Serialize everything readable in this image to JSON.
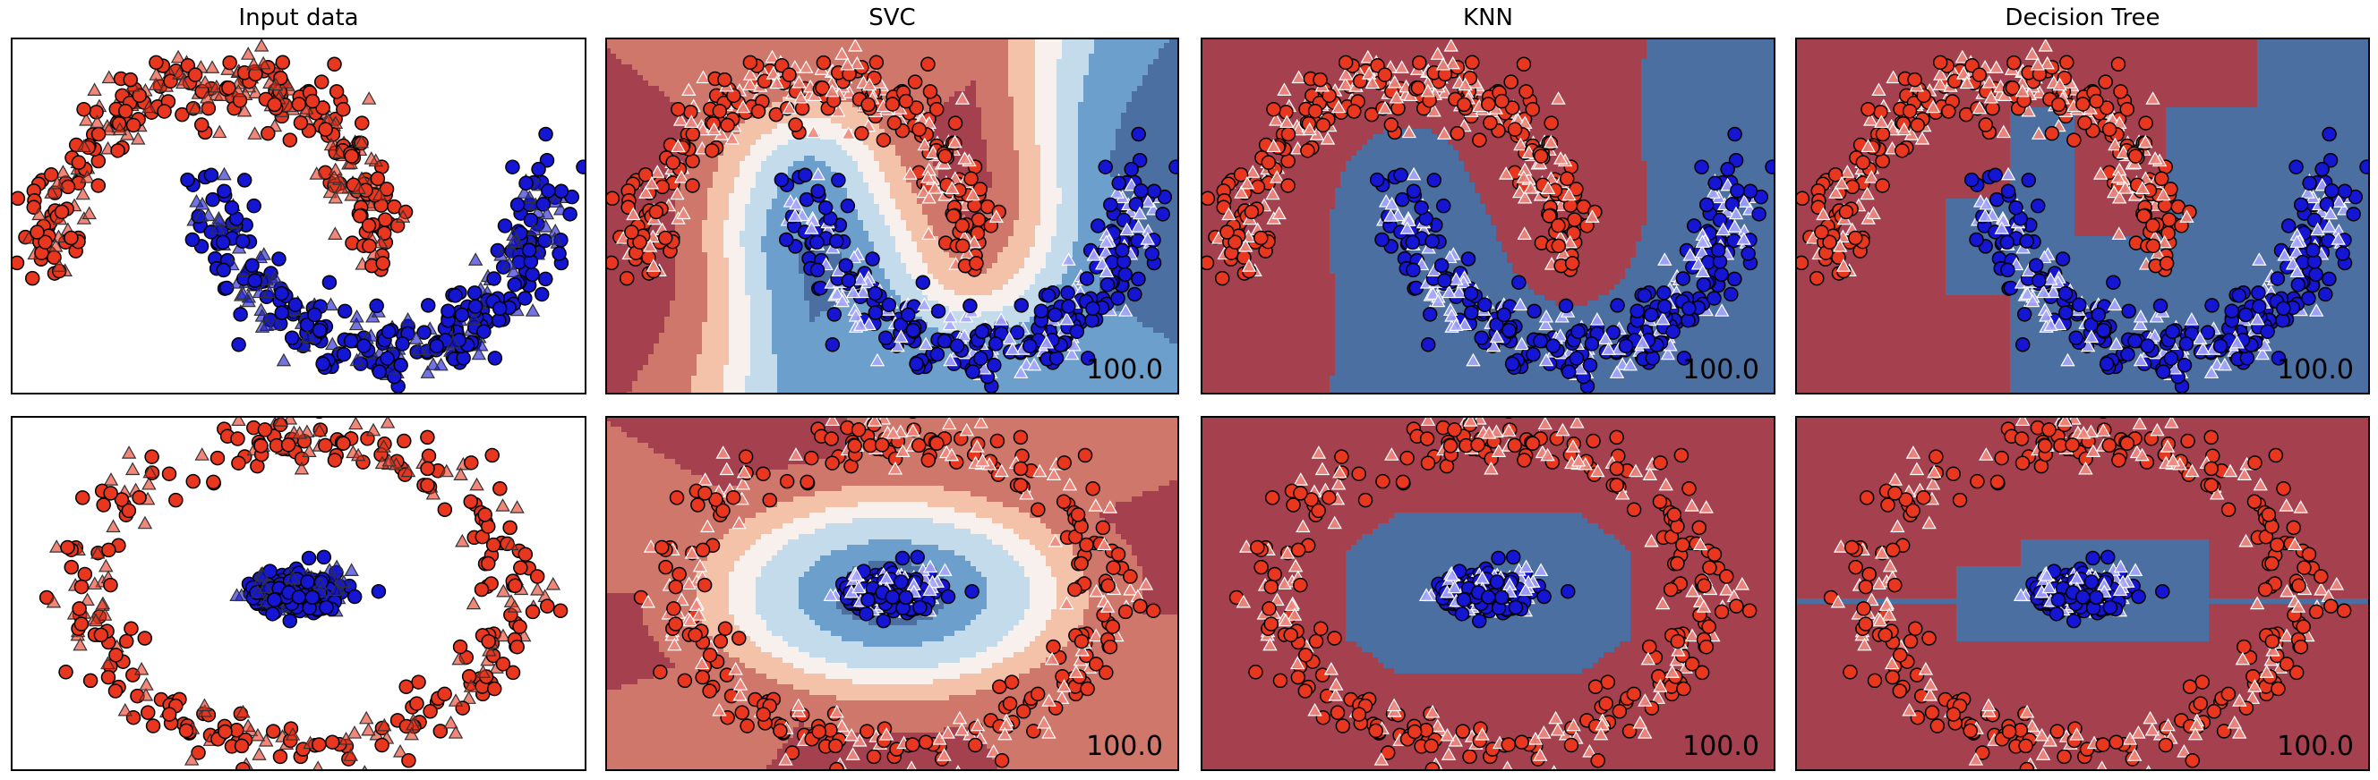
{
  "titles": {
    "input": "Input data",
    "svc": "SVC",
    "knn": "KNN",
    "tree": "Decision Tree"
  },
  "colors": {
    "class_a": "#e8361f",
    "class_b": "#1515d4",
    "class_a_light": "#f08a80",
    "class_b_light": "#a7a7ff",
    "region_red_dark": "#a5414f",
    "region_red_mid": "#cf776a",
    "region_red_light": "#f4c2a9",
    "region_white": "#f7f0ec",
    "region_blue_light": "#c4dbeb",
    "region_blue_mid": "#6c9fcb",
    "region_blue_dark": "#4a6fa0"
  },
  "chart_data": [
    {
      "type": "scatter",
      "dataset": "moons",
      "classifier": "Input data",
      "title": "Input data",
      "markers": {
        "train": "circle",
        "test": "triangle"
      },
      "series": [
        {
          "class": 0,
          "color": "#e8361f",
          "shape": "upper arc centered at (0,0), radius 1"
        },
        {
          "class": 1,
          "color": "#1515d4",
          "shape": "lower arc centered at (1,0.5), radius 1"
        }
      ],
      "score": null
    },
    {
      "type": "scatter",
      "dataset": "moons",
      "classifier": "SVC",
      "title": "SVC",
      "decision_regions": "smooth RBF contour (red upper-left, blue lower-right)",
      "score": "100.0"
    },
    {
      "type": "scatter",
      "dataset": "moons",
      "classifier": "KNN",
      "title": "KNN",
      "decision_regions": "stepped boundary along moon gap",
      "score": "100.0"
    },
    {
      "type": "scatter",
      "dataset": "moons",
      "classifier": "Decision Tree",
      "title": "Decision Tree",
      "decision_regions": "axis-aligned rectangular boundary",
      "score": "100.0"
    },
    {
      "type": "scatter",
      "dataset": "circles",
      "classifier": "Input data",
      "markers": {
        "train": "circle",
        "test": "triangle"
      },
      "series": [
        {
          "class": 0,
          "color": "#e8361f",
          "shape": "outer ring, radius 1"
        },
        {
          "class": 1,
          "color": "#1515d4",
          "shape": "inner blob, radius 0.2"
        }
      ],
      "score": null
    },
    {
      "type": "scatter",
      "dataset": "circles",
      "classifier": "SVC",
      "decision_regions": "concentric elliptical contours (blue center)",
      "score": "100.0"
    },
    {
      "type": "scatter",
      "dataset": "circles",
      "classifier": "KNN",
      "decision_regions": "octagonal blue region around center",
      "score": "100.0"
    },
    {
      "type": "scatter",
      "dataset": "circles",
      "classifier": "Decision Tree",
      "decision_regions": "stepped blue region with horizontal band",
      "score": "100.0"
    }
  ]
}
